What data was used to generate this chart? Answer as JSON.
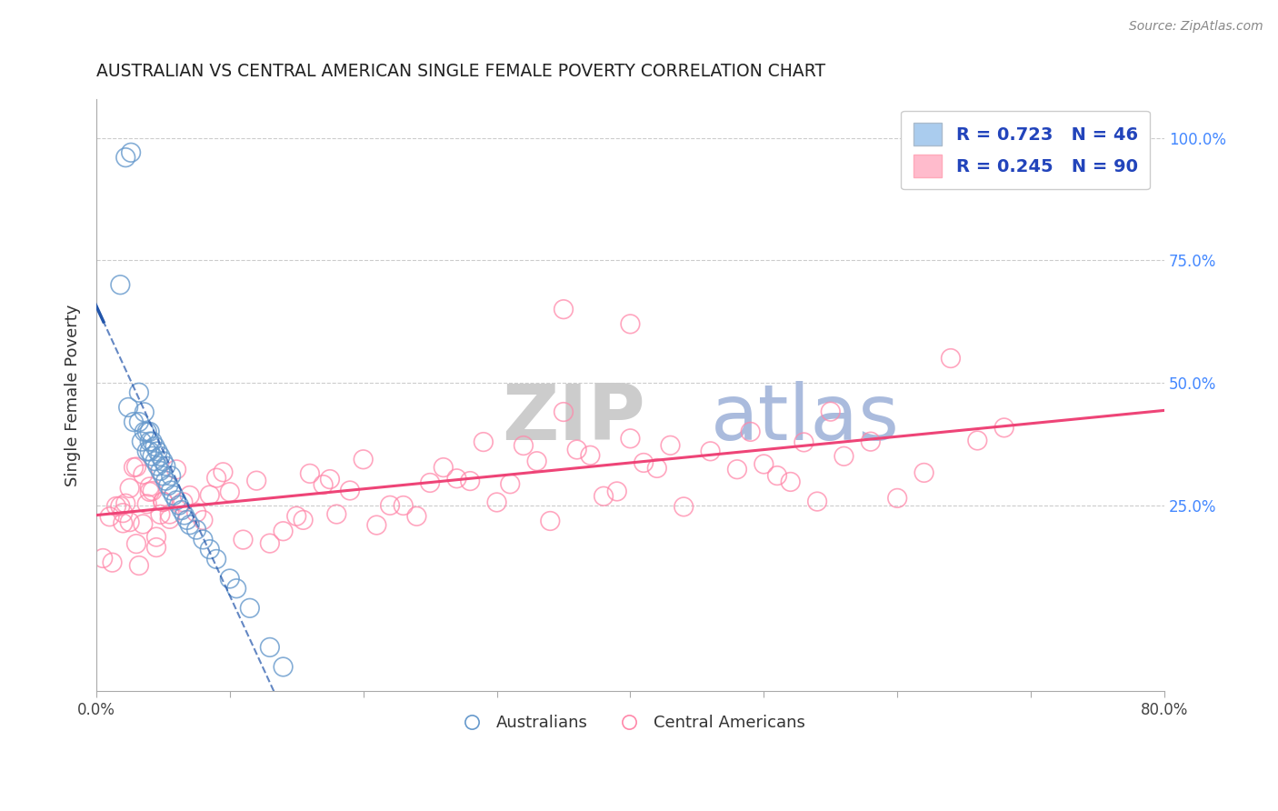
{
  "title": "AUSTRALIAN VS CENTRAL AMERICAN SINGLE FEMALE POVERTY CORRELATION CHART",
  "source": "Source: ZipAtlas.com",
  "ylabel": "Single Female Poverty",
  "xlim": [
    0.0,
    0.8
  ],
  "ylim": [
    -0.13,
    1.08
  ],
  "xtick_positions": [
    0.0,
    0.1,
    0.2,
    0.3,
    0.4,
    0.5,
    0.6,
    0.7,
    0.8
  ],
  "xtick_labels": [
    "0.0%",
    "",
    "",
    "",
    "",
    "",
    "",
    "",
    "80.0%"
  ],
  "yticks_right": [
    0.25,
    0.5,
    0.75,
    1.0
  ],
  "yticklabels_right": [
    "25.0%",
    "50.0%",
    "75.0%",
    "100.0%"
  ],
  "legend_blue_text": "R = 0.723   N = 46",
  "legend_pink_text": "R = 0.245   N = 90",
  "legend_blue_fill": "#aaccee",
  "legend_pink_fill": "#ffbbcc",
  "blue_dot_color": "#6699cc",
  "pink_dot_color": "#ff88aa",
  "blue_line_color": "#2255aa",
  "pink_line_color": "#ee4477",
  "right_tick_color": "#4488ff",
  "grid_color": "#cccccc",
  "axis_color": "#aaaaaa",
  "watermark_zip_color": "#cccccc",
  "watermark_atlas_color": "#aabbdd",
  "source_color": "#888888",
  "legend_text_color": "#2244bb",
  "title_color": "#222222"
}
